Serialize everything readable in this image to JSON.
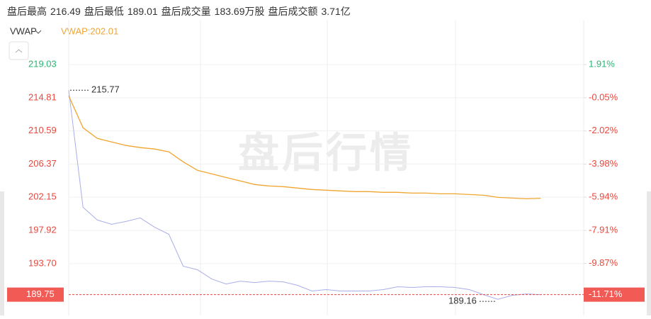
{
  "header": {
    "stats": [
      {
        "label": "盘后最高",
        "value": "216.49"
      },
      {
        "label": "盘后最低",
        "value": "189.01"
      },
      {
        "label": "盘后成交量",
        "value": "183.69万股"
      },
      {
        "label": "盘后成交额",
        "value": "3.71亿"
      }
    ]
  },
  "indicator": {
    "name": "VWAP",
    "legend": "VWAP:202.01"
  },
  "watermark": "盘后行情",
  "chart_data": {
    "type": "line",
    "series": [
      {
        "name": "price",
        "color": "#a9aee8",
        "values": [
          215.77,
          200.87,
          199.24,
          198.7,
          199.06,
          199.51,
          198.34,
          197.43,
          193.37,
          192.92,
          191.74,
          191.11,
          191.47,
          191.29,
          191.47,
          191.38,
          190.93,
          190.21,
          190.39,
          190.21,
          190.21,
          190.21,
          190.39,
          190.75,
          190.66,
          190.75,
          190.75,
          190.66,
          190.39,
          189.75,
          189.16,
          189.66,
          189.84,
          189.75,
          null,
          null,
          null
        ]
      },
      {
        "name": "VWAP",
        "color": "#f0a530",
        "values": [
          215.05,
          210.99,
          209.63,
          209.18,
          208.73,
          208.46,
          208.28,
          207.92,
          206.65,
          205.57,
          205.12,
          204.66,
          204.21,
          203.76,
          203.58,
          203.49,
          203.31,
          203.13,
          203.04,
          202.95,
          202.86,
          202.86,
          202.77,
          202.77,
          202.67,
          202.67,
          202.58,
          202.58,
          202.49,
          202.4,
          202.13,
          202.04,
          201.95,
          202.01,
          null,
          null,
          null
        ]
      }
    ],
    "ylim": [
      187.1,
      220.48
    ],
    "yticks": [
      219.03,
      214.81,
      210.59,
      206.37,
      202.15,
      197.92,
      {
        "value": 193.7,
        "label": "193.70"
      }
    ],
    "y2lim": [
      -12.944,
      2.587
    ],
    "y2ticks": [
      {
        "value": 1.91,
        "label": "1.91%"
      },
      {
        "value": -0.05,
        "label": "-0.05%"
      },
      {
        "value": -2.02,
        "label": "-2.02%"
      },
      {
        "value": -3.98,
        "label": "-3.98%"
      },
      {
        "value": -5.94,
        "label": "-5.94%"
      },
      {
        "value": -7.91,
        "label": "-7.91%"
      },
      {
        "value": -9.87,
        "label": "-9.87%"
      }
    ],
    "last_price": 189.75,
    "last_change": {
      "value": -11.71,
      "label": "-11.71%"
    },
    "max_label": 215.77,
    "min_label": 189.16,
    "up_color": "#2bb673",
    "down_color": "#e8473c"
  }
}
